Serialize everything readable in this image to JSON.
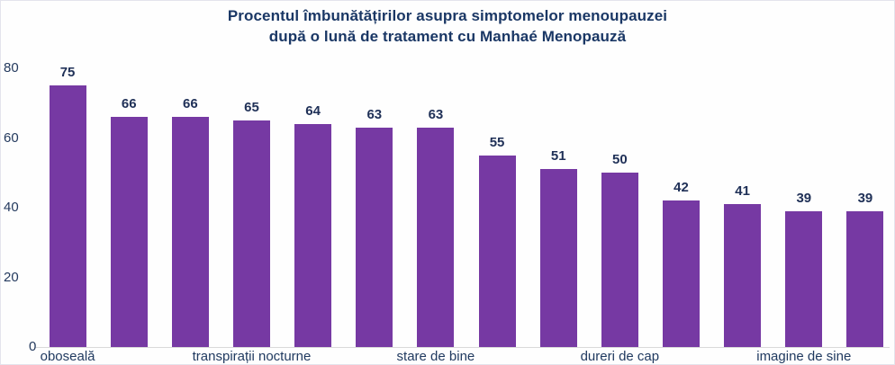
{
  "chart_data": {
    "type": "bar",
    "title_lines": [
      "Procentul îmbunătățirilor asupra simptomelor menoupauzei",
      "după o lună de tratament cu Manhaé Menopauză"
    ],
    "values": [
      75,
      66,
      66,
      65,
      64,
      63,
      63,
      55,
      51,
      50,
      42,
      41,
      39,
      39
    ],
    "x_tick_labels": [
      {
        "bar_index": 0,
        "label": "oboseală"
      },
      {
        "bar_index": 3,
        "label": "transpirații nocturne"
      },
      {
        "bar_index": 6,
        "label": "stare de bine"
      },
      {
        "bar_index": 9,
        "label": "dureri de cap"
      },
      {
        "bar_index": 12,
        "label": "imagine de sine"
      }
    ],
    "y_ticks": [
      0,
      20,
      40,
      60,
      80
    ],
    "ylim": [
      0,
      80
    ],
    "grid": false,
    "legend": null,
    "data_labels_shown": true,
    "colors": {
      "bar": "#7639A3",
      "text": "#1F3459",
      "axis_line": "#d9d9d9"
    }
  }
}
